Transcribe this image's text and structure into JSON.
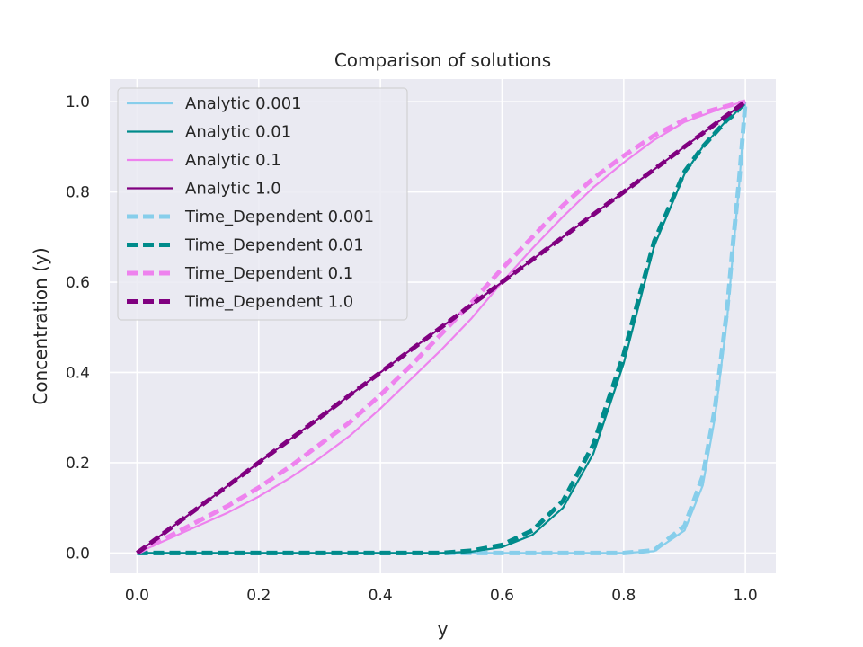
{
  "chart_data": {
    "type": "line",
    "title": "Comparison of solutions",
    "xlabel": "y",
    "ylabel": "Concentration (y)",
    "xlim": [
      -0.045,
      1.05
    ],
    "ylim": [
      -0.045,
      1.05
    ],
    "xticks": [
      0.0,
      0.2,
      0.4,
      0.6,
      0.8,
      1.0
    ],
    "yticks": [
      0.0,
      0.2,
      0.4,
      0.6,
      0.8,
      1.0
    ],
    "tick_labels_x": [
      "0.0",
      "0.2",
      "0.4",
      "0.6",
      "0.8",
      "1.0"
    ],
    "tick_labels_y": [
      "0.0",
      "0.2",
      "0.4",
      "0.6",
      "0.8",
      "1.0"
    ],
    "grid": true,
    "legend_position": "upper-left",
    "background": "#eaeaf2",
    "x": [
      0.0,
      0.05,
      0.1,
      0.15,
      0.2,
      0.25,
      0.3,
      0.35,
      0.4,
      0.45,
      0.5,
      0.55,
      0.6,
      0.65,
      0.7,
      0.75,
      0.8,
      0.85,
      0.9,
      0.93,
      0.95,
      0.97,
      0.98,
      0.99,
      1.0
    ],
    "series": [
      {
        "name": "Analytic 0.001",
        "color": "#87ceeb",
        "style": "solid",
        "values": [
          0,
          0,
          0,
          0,
          0,
          0,
          0,
          0,
          0,
          0,
          0,
          0,
          0,
          0,
          0,
          0,
          0.0,
          0.004,
          0.05,
          0.15,
          0.3,
          0.52,
          0.67,
          0.82,
          1.0
        ]
      },
      {
        "name": "Analytic 0.01",
        "color": "#008b8b",
        "style": "solid",
        "values": [
          0,
          0,
          0,
          0,
          0,
          0,
          0,
          0,
          0,
          0,
          0,
          0.003,
          0.013,
          0.04,
          0.1,
          0.22,
          0.42,
          0.68,
          0.84,
          0.9,
          0.93,
          0.96,
          0.97,
          0.985,
          1.0
        ]
      },
      {
        "name": "Analytic 0.1",
        "color": "#ee82ee",
        "style": "solid",
        "values": [
          0,
          0.03,
          0.06,
          0.09,
          0.125,
          0.165,
          0.21,
          0.26,
          0.32,
          0.385,
          0.45,
          0.52,
          0.6,
          0.675,
          0.745,
          0.81,
          0.865,
          0.915,
          0.955,
          0.97,
          0.98,
          0.99,
          0.993,
          0.997,
          1.0
        ]
      },
      {
        "name": "Analytic 1.0",
        "color": "#800080",
        "style": "solid",
        "values": [
          0,
          0.05,
          0.1,
          0.15,
          0.2,
          0.25,
          0.3,
          0.35,
          0.4,
          0.45,
          0.5,
          0.55,
          0.6,
          0.65,
          0.7,
          0.75,
          0.8,
          0.85,
          0.9,
          0.93,
          0.95,
          0.97,
          0.98,
          0.99,
          1.0
        ]
      },
      {
        "name": "Time_Dependent 0.001",
        "color": "#87ceeb",
        "style": "dashed",
        "values": [
          0,
          0,
          0,
          0,
          0,
          0,
          0,
          0,
          0,
          0,
          0,
          0,
          0,
          0,
          0,
          0,
          0.0,
          0.006,
          0.06,
          0.17,
          0.32,
          0.54,
          0.69,
          0.83,
          1.0
        ]
      },
      {
        "name": "Time_Dependent 0.01",
        "color": "#008b8b",
        "style": "dashed",
        "values": [
          0,
          0,
          0,
          0,
          0,
          0,
          0,
          0,
          0,
          0,
          0,
          0.005,
          0.018,
          0.05,
          0.115,
          0.24,
          0.44,
          0.69,
          0.845,
          0.9,
          0.93,
          0.96,
          0.97,
          0.985,
          1.0
        ]
      },
      {
        "name": "Time_Dependent 0.1",
        "color": "#ee82ee",
        "style": "dashed",
        "values": [
          0,
          0.035,
          0.07,
          0.105,
          0.145,
          0.19,
          0.24,
          0.29,
          0.35,
          0.415,
          0.485,
          0.555,
          0.63,
          0.7,
          0.77,
          0.83,
          0.88,
          0.925,
          0.96,
          0.975,
          0.983,
          0.99,
          0.994,
          0.997,
          1.0
        ]
      },
      {
        "name": "Time_Dependent 1.0",
        "color": "#800080",
        "style": "dashed",
        "values": [
          0,
          0.05,
          0.1,
          0.15,
          0.2,
          0.25,
          0.3,
          0.35,
          0.4,
          0.45,
          0.5,
          0.55,
          0.6,
          0.65,
          0.7,
          0.75,
          0.8,
          0.85,
          0.9,
          0.93,
          0.95,
          0.97,
          0.98,
          0.99,
          1.0
        ]
      }
    ]
  }
}
